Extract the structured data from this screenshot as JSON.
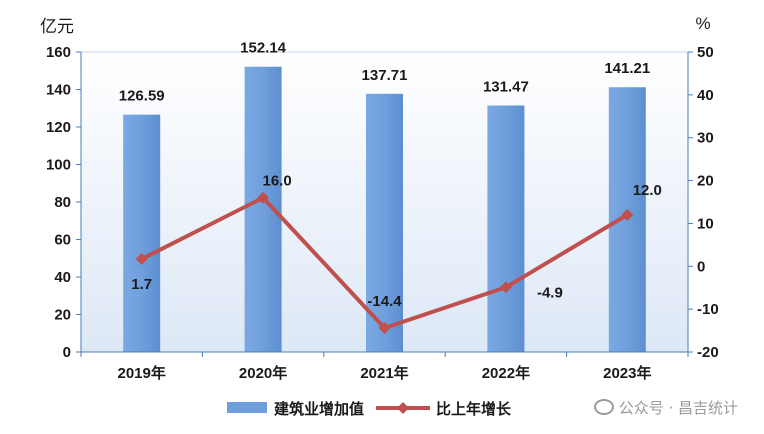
{
  "chart_data": {
    "type": "bar",
    "categories": [
      "2019年",
      "2020年",
      "2021年",
      "2022年",
      "2023年"
    ],
    "series": [
      {
        "name": "建筑业增加值",
        "type": "bar",
        "axis": "left",
        "values": [
          126.59,
          152.14,
          137.71,
          131.47,
          141.21
        ],
        "labels": [
          "126.59",
          "152.14",
          "137.71",
          "131.47",
          "141.21"
        ],
        "color": "#6F9FDC"
      },
      {
        "name": "比上年增长",
        "type": "line",
        "axis": "right",
        "values": [
          1.7,
          16.0,
          -14.4,
          -4.9,
          12.0
        ],
        "labels": [
          "1.7",
          "16.0",
          "-14.4",
          "-4.9",
          "12.0"
        ],
        "color": "#C0504D"
      }
    ],
    "y_left": {
      "unit": "亿元",
      "min": 0,
      "max": 160,
      "ticks": [
        "0",
        "20",
        "40",
        "60",
        "80",
        "100",
        "120",
        "140",
        "160"
      ]
    },
    "y_right": {
      "unit": "%",
      "min": -20,
      "max": 50,
      "ticks": [
        "-20",
        "-10",
        "0",
        "10",
        "20",
        "30",
        "40",
        "50"
      ]
    },
    "legend": "bottom",
    "grid": false
  },
  "watermark": "公众号 · 昌吉统计"
}
